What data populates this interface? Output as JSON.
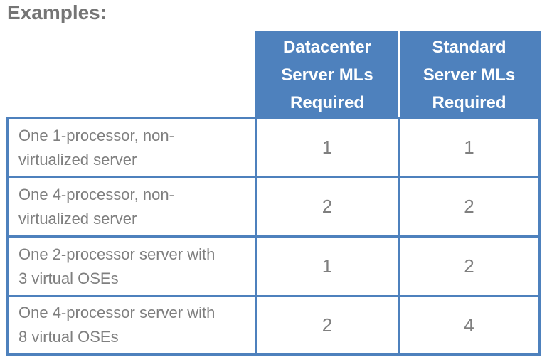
{
  "page": {
    "heading": "Examples:"
  },
  "table": {
    "columns": {
      "datacenter": "Datacenter Server MLs Required",
      "standard": "Standard Server MLs Required"
    },
    "rows": [
      {
        "label": "One 1-processor, non-virtualized server",
        "datacenter": "1",
        "standard": "1"
      },
      {
        "label": "One 4-processor, non-virtualized server",
        "datacenter": "2",
        "standard": "2"
      },
      {
        "label": "One 2-processor server with 3 virtual OSEs",
        "datacenter": "1",
        "standard": "2"
      },
      {
        "label": "One 4-processor server with 8 virtual OSEs",
        "datacenter": "2",
        "standard": "4"
      }
    ]
  },
  "colors": {
    "header_background": "#4e81bd",
    "border": "#4e81bd",
    "header_text": "#ffffff",
    "body_text": "#7f7f7f",
    "heading_text": "#757575",
    "page_background": "#ffffff"
  }
}
